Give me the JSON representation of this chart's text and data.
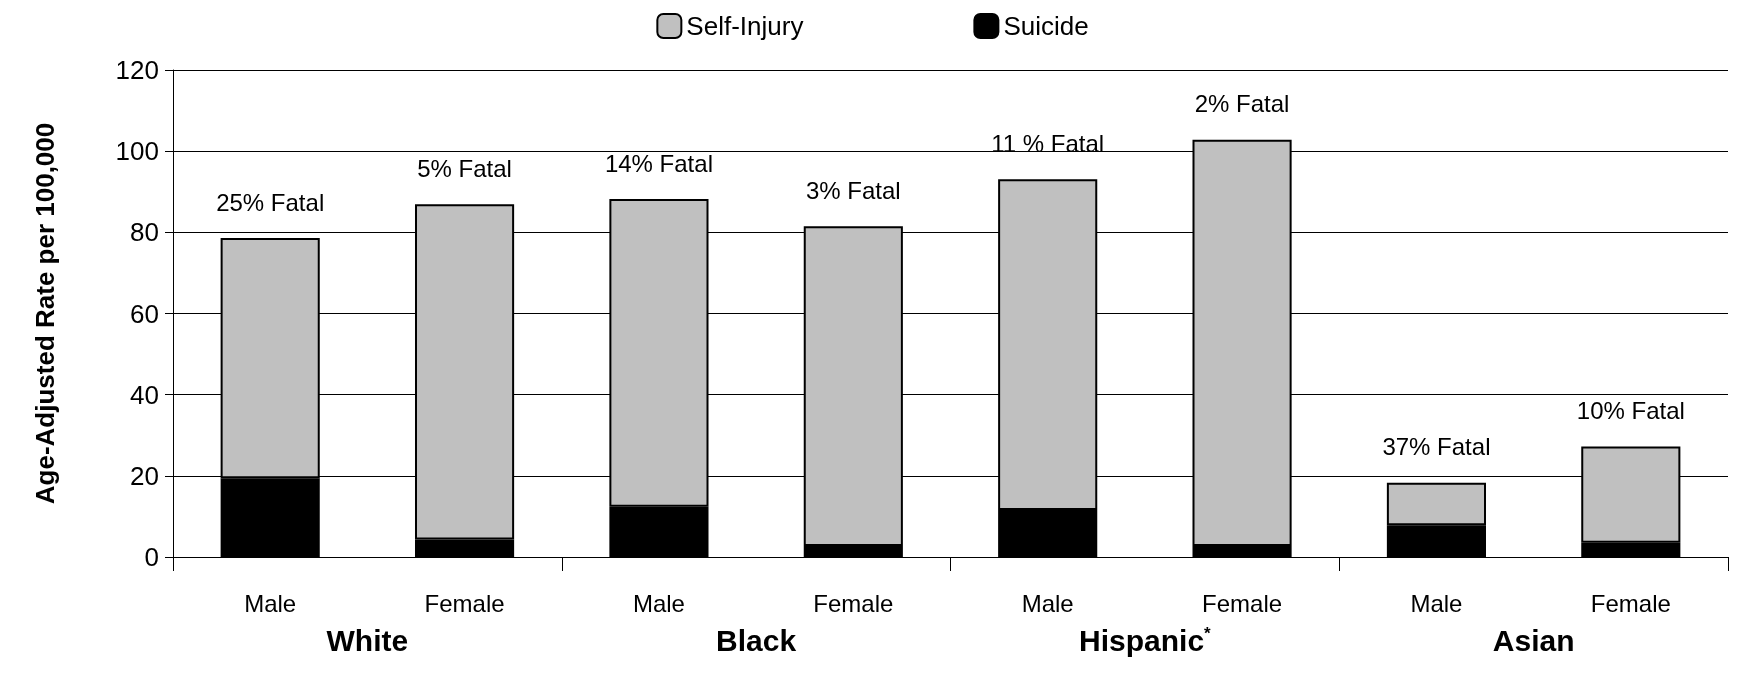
{
  "chart_data": {
    "type": "bar",
    "stacked": true,
    "ylabel": "Age-Adjusted Rate per 100,000",
    "categories": [
      "Male",
      "Female",
      "Male",
      "Female",
      "Male",
      "Female",
      "Male",
      "Female"
    ],
    "series": [
      {
        "name": "Suicide",
        "color": "#000000",
        "values": [
          19.4,
          4.3,
          12.4,
          2.7,
          11.6,
          2.7,
          7.8,
          3.5
        ]
      },
      {
        "name": "Self-Injury",
        "color": "#c0c0c0",
        "values": [
          59.2,
          82.6,
          75.8,
          78.8,
          81.5,
          100.1,
          10.5,
          23.7
        ]
      }
    ],
    "annotations": [
      "White",
      "Black",
      "Hispanic$^{*}$",
      "Asian",
      {
        "text": "25% Fatal",
        "y": 78.6
      },
      {
        "text": "5% Fatal",
        "y": 86.9
      },
      {
        "text": "14% Fatal",
        "y": 88.2
      },
      {
        "text": "3% Fatal",
        "y": 81.5
      },
      {
        "text": "11 % Fatal",
        "y": 93.1
      },
      {
        "text": "2% Fatal",
        "y": 102.8
      },
      {
        "text": "37% Fatal",
        "y": 18.3
      },
      {
        "text": "10% Fatal",
        "y": 27.2
      }
    ],
    "ylim": [
      0,
      120
    ],
    "yticks": [
      0,
      20,
      40,
      60,
      80,
      100,
      120
    ],
    "grid": "y",
    "legend": "top"
  }
}
